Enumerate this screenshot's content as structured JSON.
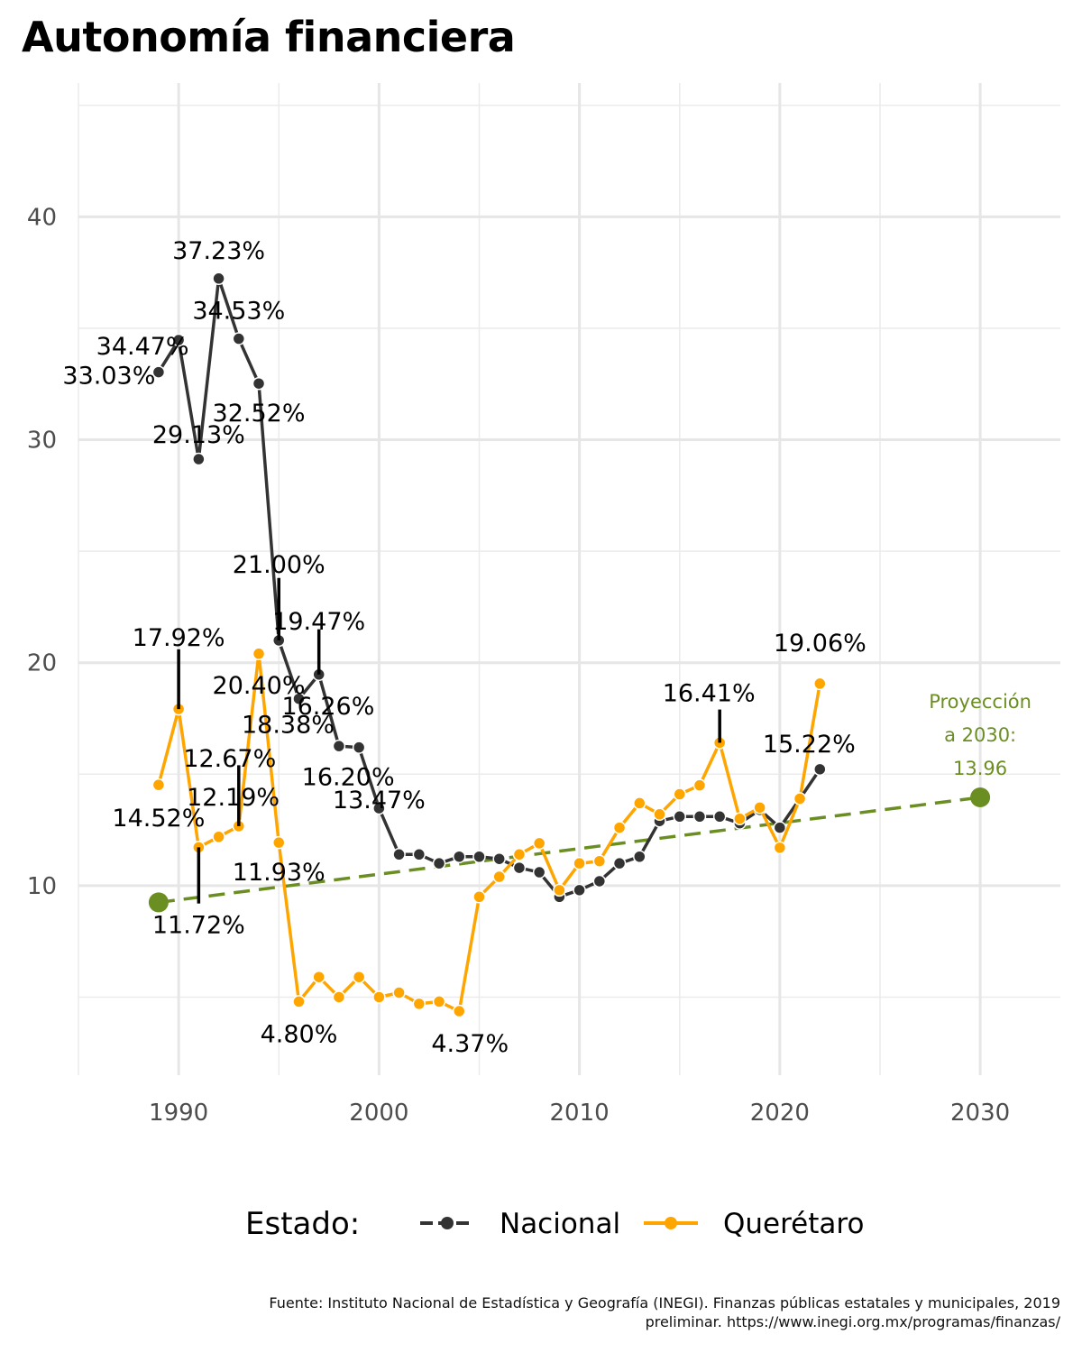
{
  "title": "Autonomía financiera",
  "caption_line1": "Fuente: Instituto Nacional de Estadística y Geografía (INEGI). Finanzas públicas estatales y municipales, 2019",
  "caption_line2": "preliminar. https://www.inegi.org.mx/programas/finanzas/",
  "chart_data": {
    "type": "line",
    "xlim": [
      1985,
      2034
    ],
    "ylim": [
      1.5,
      46
    ],
    "x_ticks": [
      1990,
      2000,
      2010,
      2020,
      2030
    ],
    "y_ticks": [
      10,
      20,
      30,
      40
    ],
    "grid": true,
    "legend": {
      "title": "Estado:",
      "placement": "bottom",
      "entries": [
        "Nacional",
        "Querétaro"
      ]
    },
    "colors": {
      "Nacional": "#333333",
      "Querétaro": "#FFA500",
      "proyeccion": "#6B8E23",
      "label_line": "#000000"
    },
    "series": [
      {
        "name": "Nacional",
        "x": [
          1989,
          1990,
          1991,
          1992,
          1993,
          1994,
          1995,
          1996,
          1997,
          1998,
          1999,
          2000,
          2001,
          2002,
          2003,
          2004,
          2005,
          2006,
          2007,
          2008,
          2009,
          2010,
          2011,
          2012,
          2013,
          2014,
          2015,
          2016,
          2017,
          2018,
          2019,
          2020,
          2021,
          2022
        ],
        "y": [
          33.03,
          34.47,
          29.13,
          37.23,
          34.53,
          32.52,
          21.0,
          18.38,
          19.47,
          16.26,
          16.2,
          13.47,
          11.4,
          11.4,
          11.0,
          11.3,
          11.3,
          11.2,
          10.8,
          10.6,
          9.5,
          9.8,
          10.2,
          11.0,
          11.3,
          12.9,
          13.1,
          13.1,
          13.1,
          12.8,
          13.4,
          12.6,
          13.9,
          15.22
        ]
      },
      {
        "name": "Querétaro",
        "x": [
          1989,
          1990,
          1991,
          1992,
          1993,
          1994,
          1995,
          1996,
          1997,
          1998,
          1999,
          2000,
          2001,
          2002,
          2003,
          2004,
          2005,
          2006,
          2007,
          2008,
          2009,
          2010,
          2011,
          2012,
          2013,
          2014,
          2015,
          2016,
          2017,
          2018,
          2019,
          2020,
          2021,
          2022
        ],
        "y": [
          14.52,
          17.92,
          11.72,
          12.19,
          12.67,
          20.4,
          11.93,
          4.8,
          5.9,
          5.0,
          5.9,
          5.0,
          5.2,
          4.7,
          4.8,
          4.37,
          9.5,
          10.4,
          11.4,
          11.9,
          9.8,
          11.0,
          11.1,
          12.6,
          13.7,
          13.2,
          14.1,
          14.5,
          16.41,
          13.0,
          13.5,
          11.7,
          13.9,
          19.06
        ]
      }
    ],
    "projection": {
      "x": [
        1989,
        2030
      ],
      "y": [
        9.25,
        13.96
      ],
      "label_lines": [
        "Proyección",
        "a 2030:",
        "13.96"
      ]
    },
    "annotations": [
      {
        "text": "33.03%",
        "x": 1989,
        "y": 33.03,
        "dx": -55,
        "dy": 3
      },
      {
        "text": "34.47%",
        "x": 1990,
        "y": 34.47,
        "dx": -40,
        "dy": 6
      },
      {
        "text": "29.13%",
        "x": 1991,
        "y": 29.13,
        "dx": 0,
        "dy": -28
      },
      {
        "text": "37.23%",
        "x": 1992,
        "y": 37.23,
        "dx": 0,
        "dy": -32
      },
      {
        "text": "34.53%",
        "x": 1993,
        "y": 34.53,
        "dx": 0,
        "dy": -32
      },
      {
        "text": "32.52%",
        "x": 1994,
        "y": 32.52,
        "dx": 0,
        "dy": 32
      },
      {
        "text": "21.00%",
        "x": 1995,
        "y": 21.0,
        "dx": 0,
        "dy": -85,
        "line_top": 23.8
      },
      {
        "text": "18.38%",
        "x": 1996,
        "y": 18.38,
        "dx": -12,
        "dy": 28
      },
      {
        "text": "19.47%",
        "x": 1997,
        "y": 19.47,
        "dx": 0,
        "dy": -60,
        "line_top": 21.5
      },
      {
        "text": "16.26%",
        "x": 1998,
        "y": 16.26,
        "dx": -12,
        "dy": -45
      },
      {
        "text": "16.20%",
        "x": 1999,
        "y": 16.2,
        "dx": -12,
        "dy": 32
      },
      {
        "text": "13.47%",
        "x": 2000,
        "y": 13.47,
        "dx": 0,
        "dy": -10
      },
      {
        "text": "14.52%",
        "x": 1989,
        "y": 14.52,
        "dx": 0,
        "dy": 36
      },
      {
        "text": "17.92%",
        "x": 1990,
        "y": 17.92,
        "dx": 0,
        "dy": -80,
        "line_top": 20.6
      },
      {
        "text": "11.72%",
        "x": 1991,
        "y": 11.72,
        "dx": 0,
        "dy": 85,
        "line_bottom": 9.2
      },
      {
        "text": "12.19%",
        "x": 1992,
        "y": 12.19,
        "dx": 16,
        "dy": -45
      },
      {
        "text": "12.67%",
        "x": 1993,
        "y": 12.67,
        "dx": -10,
        "dy": -76,
        "line_top": 15.4
      },
      {
        "text": "20.40%",
        "x": 1994,
        "y": 20.4,
        "dx": 0,
        "dy": 34
      },
      {
        "text": "11.93%",
        "x": 1995,
        "y": 11.93,
        "dx": 0,
        "dy": 32
      },
      {
        "text": "4.80%",
        "x": 1996,
        "y": 4.8,
        "dx": 0,
        "dy": 35
      },
      {
        "text": "4.37%",
        "x": 2004,
        "y": 4.37,
        "dx": 12,
        "dy": 35
      },
      {
        "text": "16.41%",
        "x": 2017,
        "y": 16.41,
        "dx": -12,
        "dy": -56,
        "line_top": 17.9
      },
      {
        "text": "15.22%",
        "x": 2022,
        "y": 15.22,
        "dx": -12,
        "dy": -29
      },
      {
        "text": "19.06%",
        "x": 2022,
        "y": 19.06,
        "dx": 0,
        "dy": -46
      }
    ]
  }
}
